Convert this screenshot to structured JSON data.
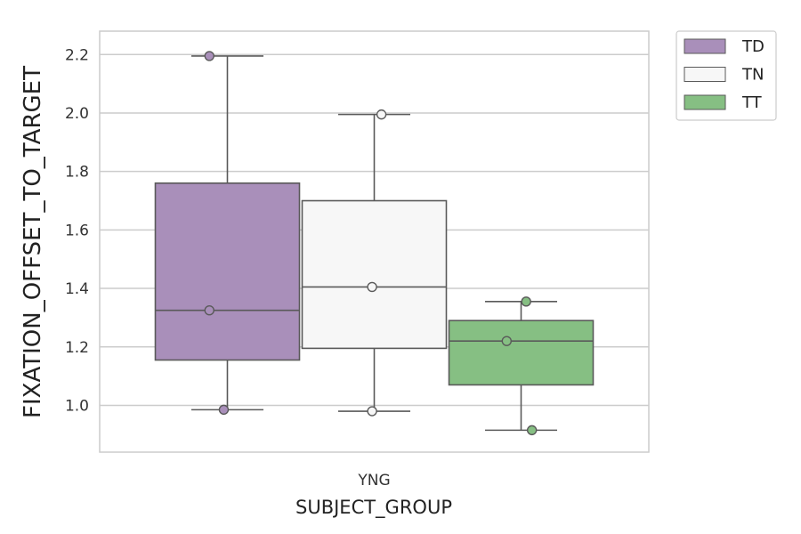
{
  "chart_data": {
    "type": "box",
    "xlabel": "SUBJECT_GROUP",
    "ylabel": "FIXATION_OFFSET_TO_TARGET",
    "categories": [
      "YNG"
    ],
    "ylim": [
      0.84,
      2.28
    ],
    "yticks": [
      1.0,
      1.2,
      1.4,
      1.6,
      1.8,
      2.0,
      2.2
    ],
    "ytick_labels": [
      "1.0",
      "1.2",
      "1.4",
      "1.6",
      "1.8",
      "2.0",
      "2.2"
    ],
    "grid": "horizontal",
    "legend_position": "outside-top-right",
    "series": [
      {
        "name": "TD",
        "color": "#a98fba",
        "whisker_low": 0.985,
        "q1": 1.155,
        "median": 1.325,
        "q3": 1.76,
        "whisker_high": 2.195,
        "points": [
          {
            "x": -0.25,
            "y": 2.195
          },
          {
            "x": -0.25,
            "y": 1.325
          },
          {
            "x": -0.05,
            "y": 0.985
          }
        ]
      },
      {
        "name": "TN",
        "color": "#f7f7f7",
        "whisker_low": 0.98,
        "q1": 1.195,
        "median": 1.405,
        "q3": 1.7,
        "whisker_high": 1.995,
        "points": [
          {
            "x": 0.1,
            "y": 1.995
          },
          {
            "x": -0.03,
            "y": 1.405
          },
          {
            "x": -0.03,
            "y": 0.98
          }
        ]
      },
      {
        "name": "TT",
        "color": "#86bf83",
        "whisker_low": 0.915,
        "q1": 1.07,
        "median": 1.22,
        "q3": 1.29,
        "whisker_high": 1.355,
        "points": [
          {
            "x": 0.07,
            "y": 1.355
          },
          {
            "x": -0.2,
            "y": 1.22
          },
          {
            "x": 0.15,
            "y": 0.915
          }
        ]
      }
    ]
  }
}
